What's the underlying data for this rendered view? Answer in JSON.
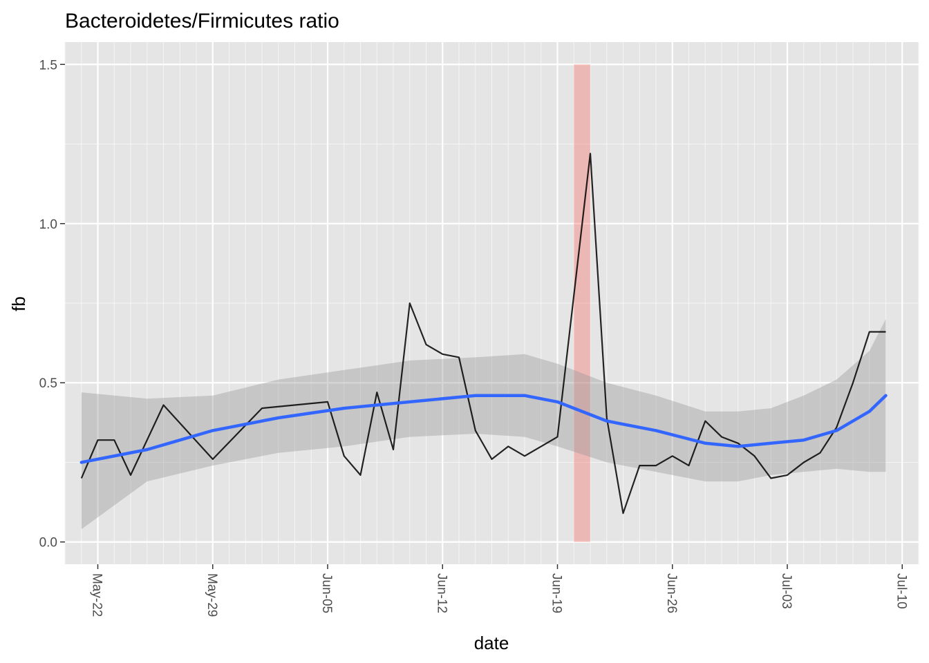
{
  "chart_data": {
    "type": "line",
    "title": "Bacteroidetes/Firmicutes ratio",
    "xlabel": "date",
    "ylabel": "fb",
    "x_axis_type": "date",
    "xlim": [
      "2020-05-20",
      "2020-07-11"
    ],
    "ylim": [
      -0.07,
      1.57
    ],
    "y_ticks": [
      0.0,
      0.5,
      1.0,
      1.5
    ],
    "y_tick_labels": [
      "0.0",
      "0.5",
      "1.0",
      "1.5"
    ],
    "x_ticks": [
      "2020-05-22",
      "2020-05-29",
      "2020-06-05",
      "2020-06-12",
      "2020-06-19",
      "2020-06-26",
      "2020-07-03",
      "2020-07-10"
    ],
    "x_tick_labels": [
      "May-22",
      "May-29",
      "Jun-05",
      "Jun-12",
      "Jun-19",
      "Jun-26",
      "Jul-03",
      "Jul-10"
    ],
    "grid": true,
    "background": "#e5e5e5",
    "series": [
      {
        "kind": "line",
        "color": "#000000",
        "x": [
          "2020-05-21",
          "2020-05-22",
          "2020-05-23",
          "2020-05-24",
          "2020-05-26",
          "2020-05-29",
          "2020-06-01",
          "2020-06-05",
          "2020-06-06",
          "2020-06-07",
          "2020-06-08",
          "2020-06-09",
          "2020-06-10",
          "2020-06-11",
          "2020-06-12",
          "2020-06-13",
          "2020-06-14",
          "2020-06-15",
          "2020-06-16",
          "2020-06-17",
          "2020-06-18",
          "2020-06-19",
          "2020-06-21",
          "2020-06-22",
          "2020-06-23",
          "2020-06-24",
          "2020-06-25",
          "2020-06-26",
          "2020-06-27",
          "2020-06-28",
          "2020-06-29",
          "2020-06-30",
          "2020-07-01",
          "2020-07-02",
          "2020-07-03",
          "2020-07-04",
          "2020-07-05",
          "2020-07-06",
          "2020-07-07",
          "2020-07-08",
          "2020-07-09"
        ],
        "y": [
          0.2,
          0.32,
          0.32,
          0.21,
          0.43,
          0.26,
          0.42,
          0.44,
          0.27,
          0.21,
          0.47,
          0.29,
          0.75,
          0.62,
          0.59,
          0.58,
          0.35,
          0.26,
          0.3,
          0.27,
          0.3,
          0.33,
          1.22,
          0.39,
          0.09,
          0.24,
          0.24,
          0.27,
          0.24,
          0.38,
          0.33,
          0.31,
          0.27,
          0.2,
          0.21,
          0.25,
          0.28,
          0.36,
          0.5,
          0.66,
          0.66
        ]
      },
      {
        "kind": "smooth",
        "color": "#3366ff",
        "ribbon_color": "#999999",
        "x": [
          "2020-05-21",
          "2020-05-25",
          "2020-05-29",
          "2020-06-02",
          "2020-06-06",
          "2020-06-10",
          "2020-06-14",
          "2020-06-17",
          "2020-06-19",
          "2020-06-22",
          "2020-06-25",
          "2020-06-28",
          "2020-06-30",
          "2020-07-02",
          "2020-07-04",
          "2020-07-06",
          "2020-07-08",
          "2020-07-09"
        ],
        "y": [
          0.25,
          0.29,
          0.35,
          0.39,
          0.42,
          0.44,
          0.46,
          0.46,
          0.44,
          0.38,
          0.35,
          0.31,
          0.3,
          0.31,
          0.32,
          0.35,
          0.41,
          0.46
        ],
        "ymin": [
          0.04,
          0.19,
          0.24,
          0.28,
          0.3,
          0.33,
          0.34,
          0.33,
          0.3,
          0.25,
          0.22,
          0.19,
          0.19,
          0.21,
          0.22,
          0.23,
          0.22,
          0.22
        ],
        "ymax": [
          0.47,
          0.45,
          0.46,
          0.51,
          0.54,
          0.57,
          0.58,
          0.59,
          0.56,
          0.5,
          0.46,
          0.41,
          0.41,
          0.42,
          0.46,
          0.51,
          0.6,
          0.7
        ]
      }
    ],
    "highlight_band": {
      "color": "#f8766d",
      "x_from": "2020-06-20",
      "x_to": "2020-06-21",
      "y_from": 0.0,
      "y_to": 1.5
    }
  }
}
